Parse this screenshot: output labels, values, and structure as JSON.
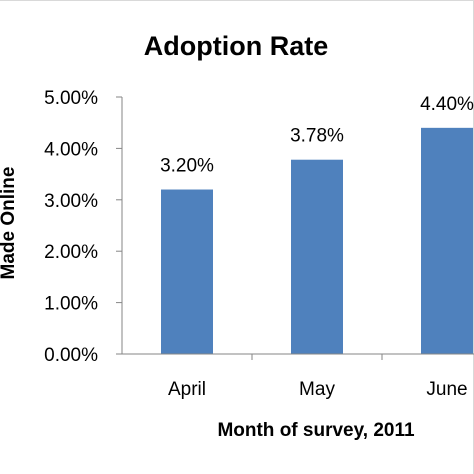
{
  "chart_data": {
    "type": "bar",
    "title": "Adoption Rate",
    "xlabel": "Month of survey, 2011",
    "ylabel": "Made Online",
    "categories": [
      "April",
      "May",
      "June"
    ],
    "values": [
      3.2,
      3.78,
      4.4
    ],
    "data_labels": [
      "3.20%",
      "3.78%",
      "4.40%"
    ],
    "ylim": [
      0,
      5
    ],
    "yticks": [
      0,
      1,
      2,
      3,
      4,
      5
    ],
    "ytick_labels": [
      "0.00%",
      "1.00%",
      "2.00%",
      "3.00%",
      "4.00%",
      "5.00%"
    ],
    "bar_color": "#4f81bd",
    "grid": false,
    "legend": "none"
  }
}
